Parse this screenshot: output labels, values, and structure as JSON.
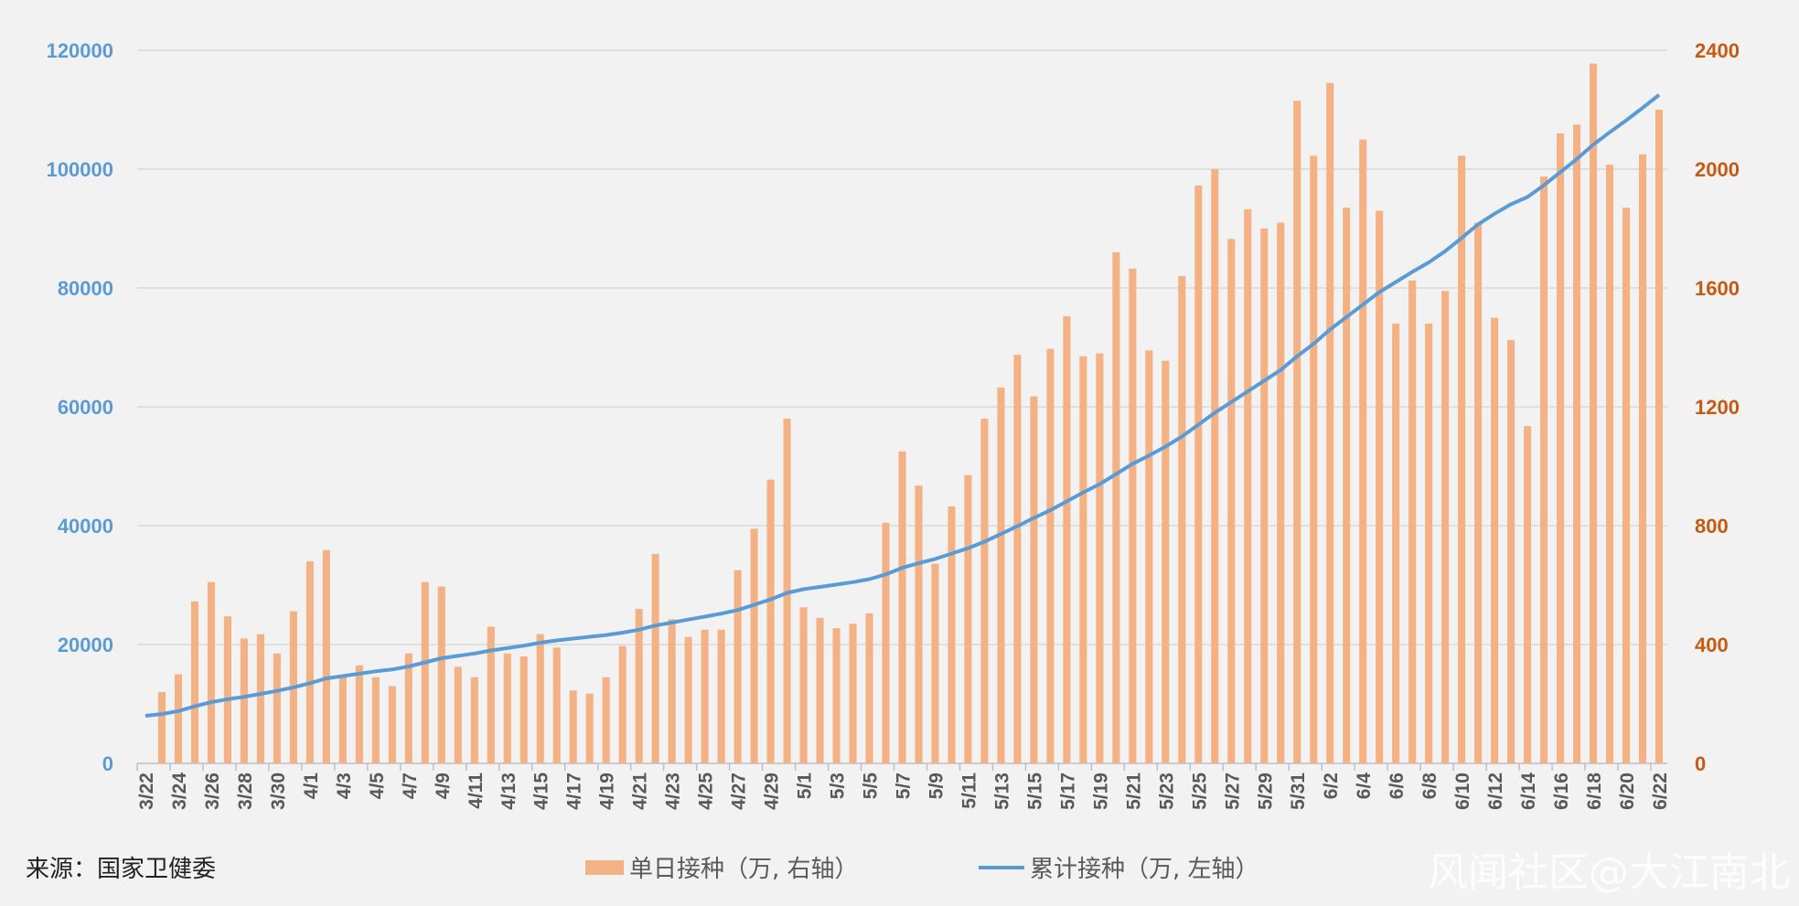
{
  "chart_data": {
    "type": "bar",
    "categories": [
      "3/22",
      "3/23",
      "3/24",
      "3/25",
      "3/26",
      "3/27",
      "3/28",
      "3/29",
      "3/30",
      "3/31",
      "4/1",
      "4/2",
      "4/3",
      "4/4",
      "4/5",
      "4/6",
      "4/7",
      "4/8",
      "4/9",
      "4/10",
      "4/11",
      "4/12",
      "4/13",
      "4/14",
      "4/15",
      "4/16",
      "4/17",
      "4/18",
      "4/19",
      "4/20",
      "4/21",
      "4/22",
      "4/23",
      "4/24",
      "4/25",
      "4/26",
      "4/27",
      "4/28",
      "4/29",
      "4/30",
      "5/1",
      "5/2",
      "5/3",
      "5/4",
      "5/5",
      "5/6",
      "5/7",
      "5/8",
      "5/9",
      "5/10",
      "5/11",
      "5/12",
      "5/13",
      "5/14",
      "5/15",
      "5/16",
      "5/17",
      "5/18",
      "5/19",
      "5/20",
      "5/21",
      "5/22",
      "5/23",
      "5/24",
      "5/25",
      "5/26",
      "5/27",
      "5/28",
      "5/29",
      "5/30",
      "5/31",
      "6/1",
      "6/2",
      "6/3",
      "6/4",
      "6/5",
      "6/6",
      "6/7",
      "6/8",
      "6/9",
      "6/10",
      "6/11",
      "6/12",
      "6/13",
      "6/14",
      "6/15",
      "6/16",
      "6/17",
      "6/18",
      "6/19",
      "6/20",
      "6/21",
      "6/22"
    ],
    "x_tick_labels": [
      "3/22",
      "3/24",
      "3/26",
      "3/28",
      "3/30",
      "4/1",
      "4/3",
      "4/5",
      "4/7",
      "4/9",
      "4/11",
      "4/13",
      "4/15",
      "4/17",
      "4/19",
      "4/21",
      "4/23",
      "4/25",
      "4/27",
      "4/29",
      "5/1",
      "5/3",
      "5/5",
      "5/7",
      "5/9",
      "5/11",
      "5/13",
      "5/15",
      "5/17",
      "5/19",
      "5/21",
      "5/23",
      "5/25",
      "5/27",
      "5/29",
      "5/31",
      "6/2",
      "6/4",
      "6/6",
      "6/8",
      "6/10",
      "6/12",
      "6/14",
      "6/16",
      "6/18",
      "6/20",
      "6/22"
    ],
    "series": [
      {
        "name": "单日接种（万, 右轴）",
        "axis": "right",
        "type": "bar",
        "color": "#f4b183",
        "values": [
          0,
          240,
          300,
          545,
          610,
          495,
          420,
          435,
          370,
          512,
          680,
          718,
          290,
          330,
          290,
          260,
          370,
          610,
          595,
          325,
          290,
          460,
          370,
          360,
          435,
          390,
          245,
          235,
          290,
          395,
          520,
          705,
          485,
          425,
          450,
          450,
          650,
          790,
          955,
          1160,
          525,
          490,
          455,
          470,
          505,
          810,
          1050,
          935,
          672,
          865,
          970,
          1160,
          1265,
          1375,
          1235,
          1395,
          1505,
          1370,
          1380,
          1720,
          1665,
          1390,
          1355,
          1640,
          1945,
          2000,
          1765,
          1865,
          1800,
          1820,
          2230,
          2045,
          2290,
          1870,
          2100,
          1860,
          1480,
          1625,
          1480,
          1590,
          2045,
          1820,
          1500,
          1425,
          1135,
          1975,
          2120,
          2150,
          2355,
          2015,
          1870,
          2050,
          2200
        ]
      },
      {
        "name": "累计接种（万, 左轴）",
        "axis": "left",
        "type": "line",
        "color": "#5b9bd5",
        "values": [
          8000,
          8300,
          8800,
          9600,
          10300,
          10800,
          11200,
          11700,
          12200,
          12800,
          13500,
          14300,
          14700,
          15100,
          15500,
          15800,
          16300,
          17000,
          17700,
          18100,
          18500,
          19000,
          19400,
          19800,
          20300,
          20700,
          21000,
          21300,
          21600,
          22000,
          22500,
          23200,
          23700,
          24200,
          24700,
          25200,
          25800,
          26700,
          27600,
          28700,
          29300,
          29700,
          30100,
          30500,
          31000,
          31800,
          32900,
          33700,
          34400,
          35300,
          36200,
          37300,
          38600,
          39900,
          41300,
          42600,
          44100,
          45600,
          47000,
          48700,
          50400,
          51800,
          53300,
          55000,
          57000,
          59000,
          60800,
          62600,
          64400,
          66200,
          68500,
          70600,
          73000,
          75100,
          77200,
          79300,
          81000,
          82700,
          84300,
          86200,
          88400,
          90700,
          92500,
          94100,
          95300,
          97300,
          99500,
          101700,
          104100,
          106200,
          108200,
          110300,
          112500
        ]
      }
    ],
    "y_left": {
      "min": 0,
      "max": 120000,
      "ticks": [
        0,
        20000,
        40000,
        60000,
        80000,
        100000,
        120000
      ],
      "tick_labels": [
        "0",
        "20000",
        "40000",
        "60000",
        "80000",
        "100000",
        "120000"
      ],
      "color": "#5b9bd5"
    },
    "y_right": {
      "min": 0,
      "max": 2400,
      "ticks": [
        0,
        400,
        800,
        1200,
        1600,
        2000,
        2400
      ],
      "tick_labels": [
        "0",
        "400",
        "800",
        "1200",
        "1600",
        "2000",
        "2400"
      ],
      "color": "#c55a11"
    },
    "grid": true,
    "legend_position": "bottom-center"
  },
  "footer": {
    "source": "来源：国家卫健委",
    "legend_bar": "单日接种（万, 右轴）",
    "legend_line": "累计接种（万, 左轴）",
    "watermark": "风闻社区@大江南北"
  }
}
